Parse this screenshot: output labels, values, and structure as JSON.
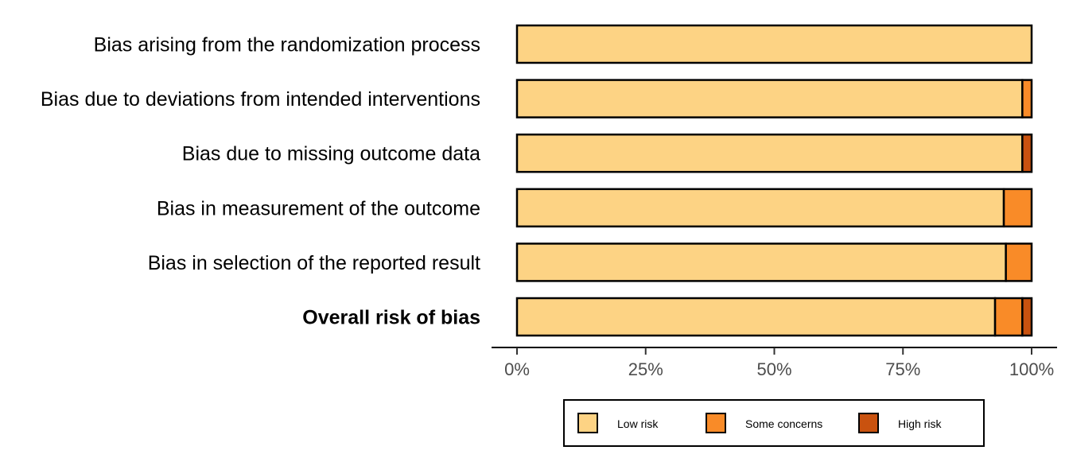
{
  "chart_data": {
    "type": "bar",
    "orientation": "horizontal",
    "stacked": true,
    "categories": [
      "Bias arising from the randomization process",
      "Bias due to deviations from intended interventions",
      "Bias due to missing outcome data",
      "Bias in measurement of the outcome",
      "Bias in selection of the reported result",
      "Overall risk of bias"
    ],
    "bold_categories": [
      "Overall risk of bias"
    ],
    "series": [
      {
        "name": "Low risk",
        "color": "#fdd384",
        "values": [
          100,
          98.2,
          98.2,
          94.6,
          95.0,
          92.9
        ]
      },
      {
        "name": "Some concerns",
        "color": "#f98b28",
        "values": [
          0,
          1.8,
          0,
          5.4,
          5.0,
          5.3
        ]
      },
      {
        "name": "High risk",
        "color": "#c9520f",
        "values": [
          0,
          0,
          1.8,
          0,
          0,
          1.8
        ]
      }
    ],
    "xlim": [
      0,
      100
    ],
    "xticks": [
      0,
      25,
      50,
      75,
      100
    ],
    "xtick_labels": [
      "0%",
      "25%",
      "50%",
      "75%",
      "100%"
    ],
    "legend_position": "bottom",
    "grid": false
  }
}
